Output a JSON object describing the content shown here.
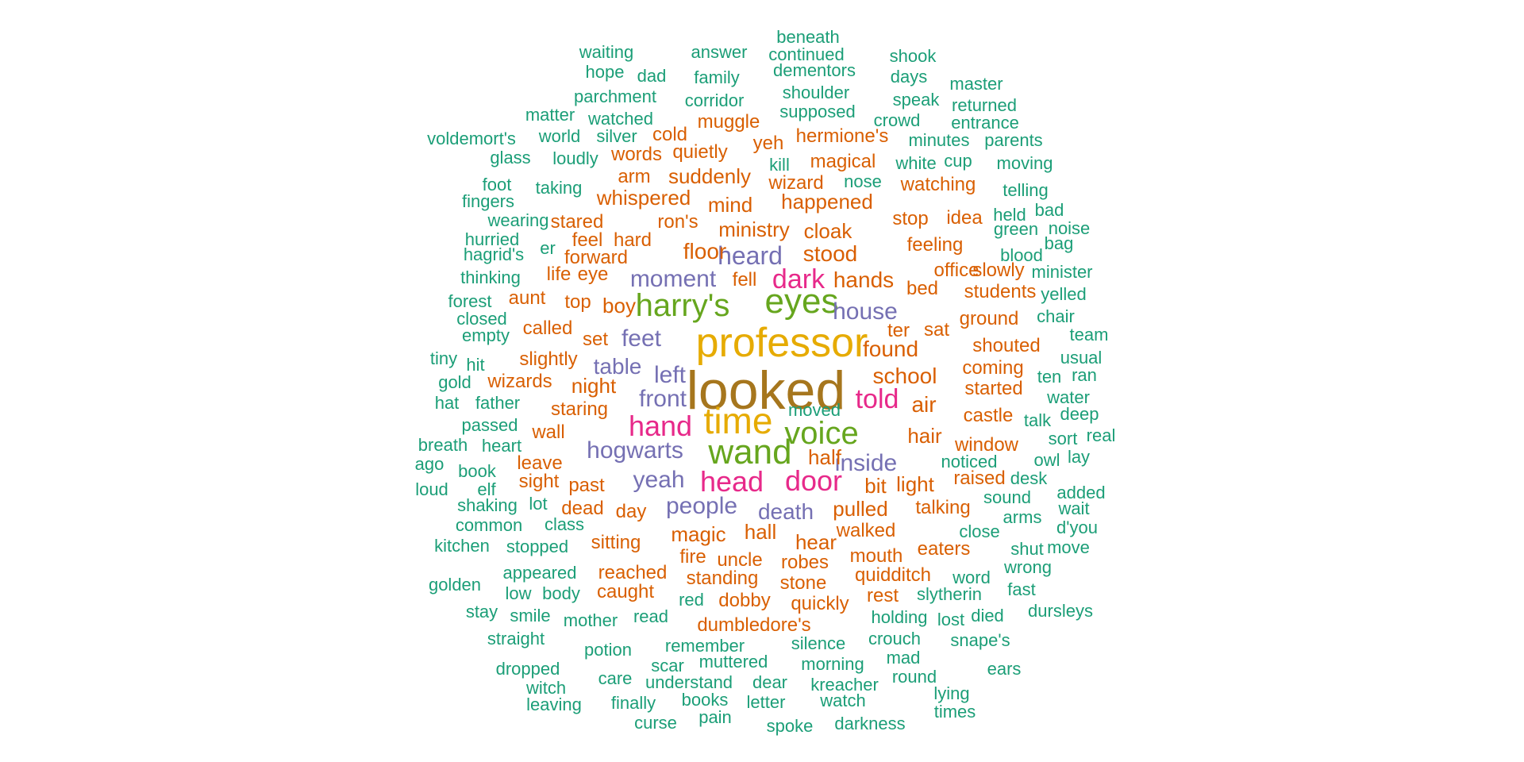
{
  "palette": {
    "c1": "#1b9e77",
    "c2": "#d95f02",
    "c3": "#7570b3",
    "c4": "#e7298a",
    "c5": "#66a61e",
    "c6": "#e6ab02",
    "c7": "#a6761d"
  },
  "words": [
    {
      "text": "looked",
      "tier": 7
    },
    {
      "text": "professor",
      "tier": 6
    },
    {
      "text": "time",
      "tier": 6
    },
    {
      "text": "harry's",
      "tier": 5
    },
    {
      "text": "eyes",
      "tier": 5
    },
    {
      "text": "wand",
      "tier": 5
    },
    {
      "text": "voice",
      "tier": 5
    },
    {
      "text": "dark",
      "tier": 4
    },
    {
      "text": "told",
      "tier": 4
    },
    {
      "text": "hand",
      "tier": 4
    },
    {
      "text": "head",
      "tier": 4
    },
    {
      "text": "door",
      "tier": 4
    },
    {
      "text": "moment",
      "tier": 3
    },
    {
      "text": "heard",
      "tier": 3
    },
    {
      "text": "house",
      "tier": 3
    },
    {
      "text": "feet",
      "tier": 3
    },
    {
      "text": "table",
      "tier": 3
    },
    {
      "text": "left",
      "tier": 3
    },
    {
      "text": "front",
      "tier": 3
    },
    {
      "text": "hogwarts",
      "tier": 3
    },
    {
      "text": "yeah",
      "tier": 3
    },
    {
      "text": "inside",
      "tier": 3
    },
    {
      "text": "people",
      "tier": 3
    },
    {
      "text": "death",
      "tier": 3
    },
    {
      "text": "floor",
      "tier": 2
    },
    {
      "text": "ministry",
      "tier": 2
    },
    {
      "text": "cloak",
      "tier": 2
    },
    {
      "text": "stood",
      "tier": 2
    },
    {
      "text": "hands",
      "tier": 2
    },
    {
      "text": "happened",
      "tier": 2
    },
    {
      "text": "suddenly",
      "tier": 2
    },
    {
      "text": "whispered",
      "tier": 2
    },
    {
      "text": "mind",
      "tier": 2
    },
    {
      "text": "ron's",
      "tier": 2
    },
    {
      "text": "fell",
      "tier": 2
    },
    {
      "text": "boy",
      "tier": 2
    },
    {
      "text": "top",
      "tier": 2
    },
    {
      "text": "found",
      "tier": 2
    },
    {
      "text": "school",
      "tier": 2
    },
    {
      "text": "air",
      "tier": 2
    },
    {
      "text": "night",
      "tier": 2
    },
    {
      "text": "hair",
      "tier": 2
    },
    {
      "text": "half",
      "tier": 2
    },
    {
      "text": "bit",
      "tier": 2
    },
    {
      "text": "light",
      "tier": 2
    },
    {
      "text": "pulled",
      "tier": 2
    },
    {
      "text": "magic",
      "tier": 2
    },
    {
      "text": "hall",
      "tier": 2
    },
    {
      "text": "hear",
      "tier": 2
    },
    {
      "text": "walked",
      "tier": 2
    },
    {
      "text": "past",
      "tier": 2
    },
    {
      "text": "day",
      "tier": 2
    },
    {
      "text": "staring",
      "tier": 2
    },
    {
      "text": "uncle",
      "tier": 2
    },
    {
      "text": "robes",
      "tier": 2
    },
    {
      "text": "mouth",
      "tier": 2
    },
    {
      "text": "dumbledore's",
      "tier": 2
    },
    {
      "text": "quickly",
      "tier": 2
    },
    {
      "text": "set",
      "tier": 2
    },
    {
      "text": "ter",
      "tier": 2
    },
    {
      "text": "sat",
      "tier": 2
    },
    {
      "text": "wizards",
      "tier": 2
    },
    {
      "text": "slightly",
      "tier": 2
    },
    {
      "text": "called",
      "tier": 2
    },
    {
      "text": "feeling",
      "tier": 2
    },
    {
      "text": "magical",
      "tier": 2
    },
    {
      "text": "wizard",
      "tier": 2
    },
    {
      "text": "hermione's",
      "tier": 2
    },
    {
      "text": "muggle",
      "tier": 2
    },
    {
      "text": "watching",
      "tier": 2
    },
    {
      "text": "window",
      "tier": 2
    },
    {
      "text": "shouted",
      "tier": 2
    },
    {
      "text": "started",
      "tier": 2
    },
    {
      "text": "castle",
      "tier": 2
    },
    {
      "text": "standing",
      "tier": 2
    },
    {
      "text": "sitting",
      "tier": 2
    },
    {
      "text": "reached",
      "tier": 2
    },
    {
      "text": "office",
      "tier": 2
    },
    {
      "text": "slowly",
      "tier": 2
    },
    {
      "text": "stop",
      "tier": 2
    },
    {
      "text": "ground",
      "tier": 2
    },
    {
      "text": "coming",
      "tier": 2
    },
    {
      "text": "students",
      "tier": 2
    },
    {
      "text": "dobby",
      "tier": 2
    },
    {
      "text": "talking",
      "tier": 2
    },
    {
      "text": "quidditch",
      "tier": 2
    },
    {
      "text": "stared",
      "tier": 2
    },
    {
      "text": "arm",
      "tier": 2
    },
    {
      "text": "forward",
      "tier": 2
    },
    {
      "text": "feel",
      "tier": 2
    },
    {
      "text": "hard",
      "tier": 2
    },
    {
      "text": "life",
      "tier": 2
    },
    {
      "text": "eye",
      "tier": 2
    },
    {
      "text": "aunt",
      "tier": 2
    },
    {
      "text": "quietly",
      "tier": 2
    },
    {
      "text": "words",
      "tier": 2
    },
    {
      "text": "cold",
      "tier": 2
    },
    {
      "text": "yeh",
      "tier": 2
    },
    {
      "text": "idea",
      "tier": 2
    },
    {
      "text": "bed",
      "tier": 2
    },
    {
      "text": "dead",
      "tier": 2
    },
    {
      "text": "wall",
      "tier": 2
    },
    {
      "text": "leave",
      "tier": 2
    },
    {
      "text": "sight",
      "tier": 2
    },
    {
      "text": "raised",
      "tier": 2
    },
    {
      "text": "eaters",
      "tier": 2
    },
    {
      "text": "fire",
      "tier": 2
    },
    {
      "text": "stone",
      "tier": 2
    },
    {
      "text": "caught",
      "tier": 2
    },
    {
      "text": "rest",
      "tier": 2
    },
    {
      "text": "beneath",
      "tier": 1
    },
    {
      "text": "waiting",
      "tier": 1
    },
    {
      "text": "answer",
      "tier": 1
    },
    {
      "text": "continued",
      "tier": 1
    },
    {
      "text": "shook",
      "tier": 1
    },
    {
      "text": "hope",
      "tier": 1
    },
    {
      "text": "dad",
      "tier": 1
    },
    {
      "text": "family",
      "tier": 1
    },
    {
      "text": "dementors",
      "tier": 1
    },
    {
      "text": "days",
      "tier": 1
    },
    {
      "text": "master",
      "tier": 1
    },
    {
      "text": "parchment",
      "tier": 1
    },
    {
      "text": "corridor",
      "tier": 1
    },
    {
      "text": "shoulder",
      "tier": 1
    },
    {
      "text": "speak",
      "tier": 1
    },
    {
      "text": "returned",
      "tier": 1
    },
    {
      "text": "matter",
      "tier": 1
    },
    {
      "text": "watched",
      "tier": 1
    },
    {
      "text": "supposed",
      "tier": 1
    },
    {
      "text": "crowd",
      "tier": 1
    },
    {
      "text": "entrance",
      "tier": 1
    },
    {
      "text": "voldemort's",
      "tier": 1
    },
    {
      "text": "world",
      "tier": 1
    },
    {
      "text": "silver",
      "tier": 1
    },
    {
      "text": "minutes",
      "tier": 1
    },
    {
      "text": "parents",
      "tier": 1
    },
    {
      "text": "glass",
      "tier": 1
    },
    {
      "text": "loudly",
      "tier": 1
    },
    {
      "text": "kill",
      "tier": 1
    },
    {
      "text": "white",
      "tier": 1
    },
    {
      "text": "cup",
      "tier": 1
    },
    {
      "text": "moving",
      "tier": 1
    },
    {
      "text": "foot",
      "tier": 1
    },
    {
      "text": "taking",
      "tier": 1
    },
    {
      "text": "nose",
      "tier": 1
    },
    {
      "text": "telling",
      "tier": 1
    },
    {
      "text": "fingers",
      "tier": 1
    },
    {
      "text": "wearing",
      "tier": 1
    },
    {
      "text": "held",
      "tier": 1
    },
    {
      "text": "bad",
      "tier": 1
    },
    {
      "text": "hurried",
      "tier": 1
    },
    {
      "text": "green",
      "tier": 1
    },
    {
      "text": "noise",
      "tier": 1
    },
    {
      "text": "er",
      "tier": 1
    },
    {
      "text": "hagrid's",
      "tier": 1
    },
    {
      "text": "bag",
      "tier": 1
    },
    {
      "text": "blood",
      "tier": 1
    },
    {
      "text": "thinking",
      "tier": 1
    },
    {
      "text": "minister",
      "tier": 1
    },
    {
      "text": "forest",
      "tier": 1
    },
    {
      "text": "yelled",
      "tier": 1
    },
    {
      "text": "closed",
      "tier": 1
    },
    {
      "text": "chair",
      "tier": 1
    },
    {
      "text": "empty",
      "tier": 1
    },
    {
      "text": "team",
      "tier": 1
    },
    {
      "text": "tiny",
      "tier": 1
    },
    {
      "text": "hit",
      "tier": 1
    },
    {
      "text": "usual",
      "tier": 1
    },
    {
      "text": "gold",
      "tier": 1
    },
    {
      "text": "ten",
      "tier": 1
    },
    {
      "text": "ran",
      "tier": 1
    },
    {
      "text": "hat",
      "tier": 1
    },
    {
      "text": "father",
      "tier": 1
    },
    {
      "text": "moved",
      "tier": 1
    },
    {
      "text": "water",
      "tier": 1
    },
    {
      "text": "deep",
      "tier": 1
    },
    {
      "text": "passed",
      "tier": 1
    },
    {
      "text": "talk",
      "tier": 1
    },
    {
      "text": "real",
      "tier": 1
    },
    {
      "text": "breath",
      "tier": 1
    },
    {
      "text": "heart",
      "tier": 1
    },
    {
      "text": "sort",
      "tier": 1
    },
    {
      "text": "ago",
      "tier": 1
    },
    {
      "text": "noticed",
      "tier": 1
    },
    {
      "text": "owl",
      "tier": 1
    },
    {
      "text": "lay",
      "tier": 1
    },
    {
      "text": "book",
      "tier": 1
    },
    {
      "text": "loud",
      "tier": 1
    },
    {
      "text": "elf",
      "tier": 1
    },
    {
      "text": "desk",
      "tier": 1
    },
    {
      "text": "added",
      "tier": 1
    },
    {
      "text": "shaking",
      "tier": 1
    },
    {
      "text": "lot",
      "tier": 1
    },
    {
      "text": "sound",
      "tier": 1
    },
    {
      "text": "wait",
      "tier": 1
    },
    {
      "text": "common",
      "tier": 1
    },
    {
      "text": "class",
      "tier": 1
    },
    {
      "text": "arms",
      "tier": 1
    },
    {
      "text": "d'you",
      "tier": 1
    },
    {
      "text": "close",
      "tier": 1
    },
    {
      "text": "kitchen",
      "tier": 1
    },
    {
      "text": "stopped",
      "tier": 1
    },
    {
      "text": "shut",
      "tier": 1
    },
    {
      "text": "move",
      "tier": 1
    },
    {
      "text": "appeared",
      "tier": 1
    },
    {
      "text": "wrong",
      "tier": 1
    },
    {
      "text": "golden",
      "tier": 1
    },
    {
      "text": "word",
      "tier": 1
    },
    {
      "text": "low",
      "tier": 1
    },
    {
      "text": "body",
      "tier": 1
    },
    {
      "text": "fast",
      "tier": 1
    },
    {
      "text": "red",
      "tier": 1
    },
    {
      "text": "slytherin",
      "tier": 1
    },
    {
      "text": "stay",
      "tier": 1
    },
    {
      "text": "smile",
      "tier": 1
    },
    {
      "text": "mother",
      "tier": 1
    },
    {
      "text": "read",
      "tier": 1
    },
    {
      "text": "holding",
      "tier": 1
    },
    {
      "text": "lost",
      "tier": 1
    },
    {
      "text": "died",
      "tier": 1
    },
    {
      "text": "dursleys",
      "tier": 1
    },
    {
      "text": "straight",
      "tier": 1
    },
    {
      "text": "silence",
      "tier": 1
    },
    {
      "text": "crouch",
      "tier": 1
    },
    {
      "text": "snape's",
      "tier": 1
    },
    {
      "text": "potion",
      "tier": 1
    },
    {
      "text": "remember",
      "tier": 1
    },
    {
      "text": "mad",
      "tier": 1
    },
    {
      "text": "dropped",
      "tier": 1
    },
    {
      "text": "scar",
      "tier": 1
    },
    {
      "text": "muttered",
      "tier": 1
    },
    {
      "text": "morning",
      "tier": 1
    },
    {
      "text": "ears",
      "tier": 1
    },
    {
      "text": "care",
      "tier": 1
    },
    {
      "text": "understand",
      "tier": 1
    },
    {
      "text": "dear",
      "tier": 1
    },
    {
      "text": "kreacher",
      "tier": 1
    },
    {
      "text": "round",
      "tier": 1
    },
    {
      "text": "witch",
      "tier": 1
    },
    {
      "text": "lying",
      "tier": 1
    },
    {
      "text": "leaving",
      "tier": 1
    },
    {
      "text": "finally",
      "tier": 1
    },
    {
      "text": "books",
      "tier": 1
    },
    {
      "text": "letter",
      "tier": 1
    },
    {
      "text": "watch",
      "tier": 1
    },
    {
      "text": "times",
      "tier": 1
    },
    {
      "text": "curse",
      "tier": 1
    },
    {
      "text": "pain",
      "tier": 1
    },
    {
      "text": "spoke",
      "tier": 1
    },
    {
      "text": "darkness",
      "tier": 1
    }
  ]
}
